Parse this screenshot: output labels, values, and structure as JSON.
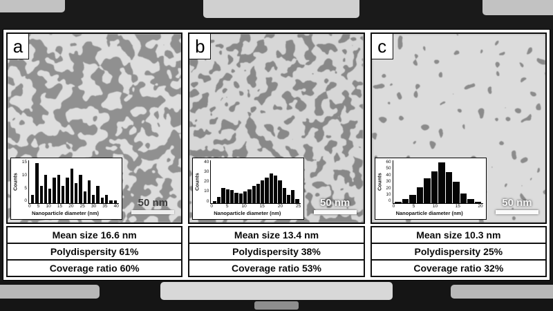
{
  "figure": {
    "panels": [
      {
        "label": "a",
        "scale_bar": "50 nm",
        "rows": [
          "Mean size 16.6 nm",
          "Polydispersity 61%",
          "Coverage ratio 60%"
        ]
      },
      {
        "label": "b",
        "scale_bar": "50 nm",
        "rows": [
          "Mean size 13.4 nm",
          "Polydispersity 38%",
          "Coverage ratio 53%"
        ]
      },
      {
        "label": "c",
        "scale_bar": "50 nm",
        "rows": [
          "Mean size 10.3 nm",
          "Polydispersity 25%",
          "Coverage ratio 32%"
        ]
      }
    ]
  },
  "chart_data": [
    {
      "type": "bar",
      "title": "Panel a nanoparticle size histogram",
      "xlabel": "Nanoparticle diameter (nm)",
      "ylabel": "Counts",
      "xticks": [
        0,
        5,
        10,
        15,
        20,
        25,
        30,
        35,
        40
      ],
      "yticks": [
        0,
        5,
        10,
        15
      ],
      "xlim": [
        0,
        40
      ],
      "ylim": [
        0,
        15
      ],
      "bin_width_nm": 2,
      "bins": [
        3,
        14,
        6,
        10,
        5,
        9,
        10,
        6,
        9,
        12,
        7,
        10,
        4,
        8,
        3,
        6,
        2,
        3,
        1,
        1
      ]
    },
    {
      "type": "bar",
      "title": "Panel b nanoparticle size histogram",
      "xlabel": "Nanoparticle diameter (nm)",
      "ylabel": "Counts",
      "xticks": [
        0,
        5,
        10,
        15,
        20,
        25
      ],
      "yticks": [
        0,
        10,
        20,
        30,
        40
      ],
      "xlim": [
        0,
        25
      ],
      "ylim": [
        0,
        40
      ],
      "bin_width_nm": 1,
      "bins": [
        2,
        6,
        14,
        13,
        12,
        10,
        9,
        11,
        13,
        16,
        18,
        21,
        24,
        28,
        26,
        21,
        14,
        8,
        12,
        4
      ]
    },
    {
      "type": "bar",
      "title": "Panel c nanoparticle size histogram",
      "xlabel": "Nanoparticle diameter (nm)",
      "ylabel": "Counts",
      "xticks": [
        0,
        5,
        10,
        15,
        20
      ],
      "yticks": [
        0,
        10,
        20,
        30,
        40,
        50,
        60
      ],
      "xlim": [
        0,
        20
      ],
      "ylim": [
        0,
        60
      ],
      "bin_width_nm": 1,
      "bins": [
        2,
        6,
        12,
        22,
        35,
        45,
        57,
        44,
        30,
        14,
        6,
        2
      ]
    }
  ]
}
